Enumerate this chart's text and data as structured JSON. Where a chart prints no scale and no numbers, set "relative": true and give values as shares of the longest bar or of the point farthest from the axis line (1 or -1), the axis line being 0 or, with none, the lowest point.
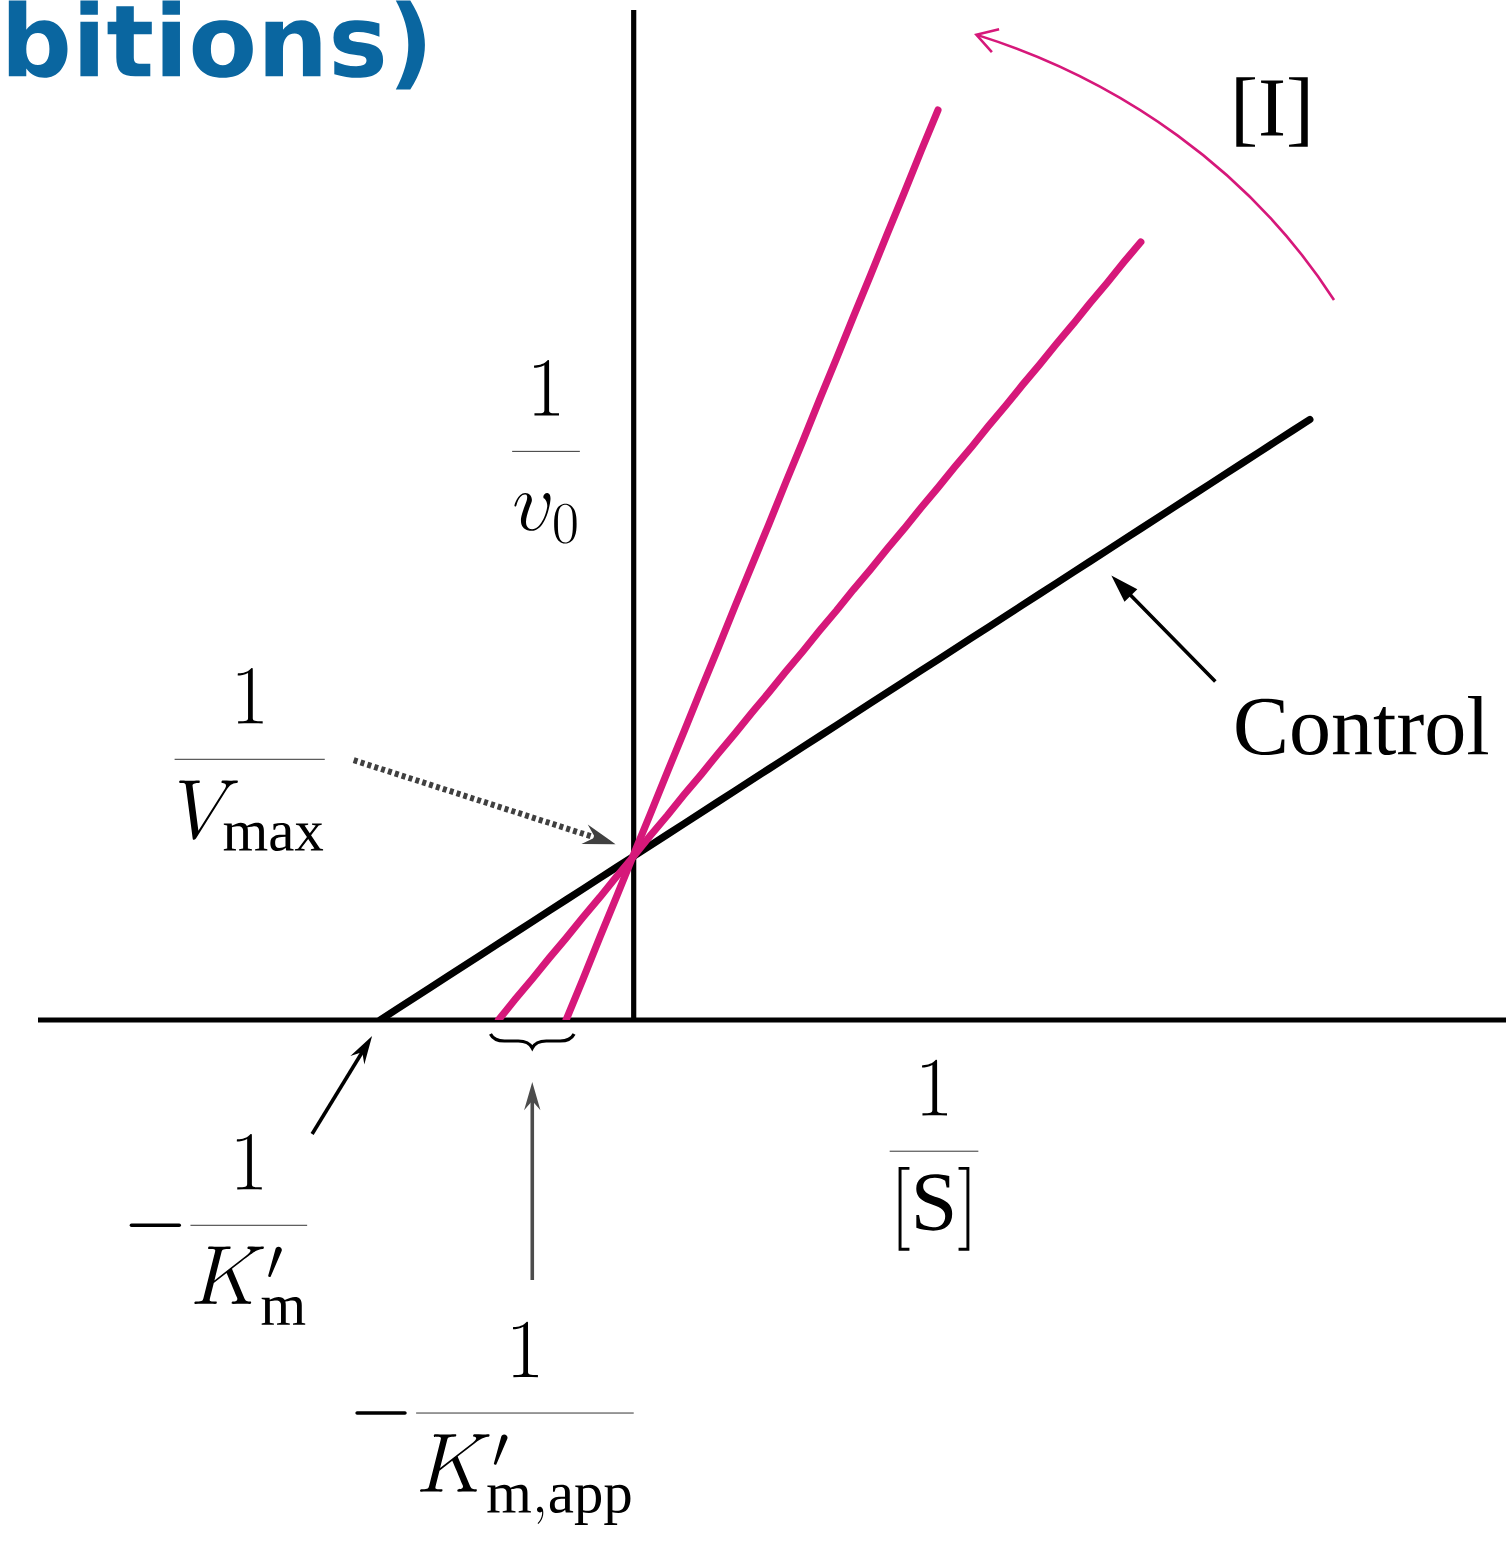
{
  "chart_data": {
    "type": "line",
    "title": "bitions)",
    "xlabel": "\\frac{1}{[\\mathrm{S}]}",
    "ylabel": "\\frac{1}{v_0}",
    "relative": true,
    "categories": [
      null,
      null,
      null,
      null,
      null,
      null,
      null,
      null,
      null,
      null,
      null,
      null,
      null,
      null,
      null,
      null,
      null,
      null,
      null,
      null,
      null,
      null,
      null,
      null,
      null,
      null,
      null,
      null,
      null,
      null,
      null,
      null,
      null,
      null,
      null,
      null,
      null,
      null,
      null,
      null,
      null,
      null,
      null,
      null,
      null,
      null,
      null,
      null,
      null,
      null,
      null,
      null,
      null,
      null,
      null,
      null
    ],
    "series": [
      {
        "name": "Control",
        "color": "#000000",
        "values": [
          0,
          0.012,
          0.024,
          0.036,
          0.048,
          0.06,
          0.072,
          0.084,
          0.096,
          0.108,
          0.12,
          0.132,
          0.144,
          0.156,
          0.168,
          0.18,
          0.192,
          0.204,
          0.216,
          0.228,
          0.24,
          0.252,
          0.264,
          0.276,
          0.288,
          0.3,
          0.312,
          0.324,
          0.336,
          0.348,
          0.36,
          0.372,
          0.384,
          0.396,
          0.408,
          0.42,
          0.432,
          0.444,
          0.456,
          0.468,
          0.48,
          0.492,
          0.504,
          0.516,
          0.528,
          0.54,
          0.552,
          0.564,
          0.576,
          0.588,
          0.6,
          0.612,
          0.624,
          0.636,
          0.648,
          0.66
        ]
      },
      {
        "color": "#d6187a",
        "values": [
          null,
          null,
          null,
          null,
          null,
          null,
          null,
          0,
          0.023,
          0.045,
          0.068,
          0.09,
          0.113,
          0.135,
          0.158,
          0.18,
          0.203,
          0.225,
          0.248,
          0.27,
          0.293,
          0.315,
          0.338,
          0.36,
          0.383,
          0.405,
          0.428,
          0.45,
          0.473,
          0.495,
          0.518,
          0.54,
          0.563,
          0.585,
          0.608,
          0.63,
          0.653,
          0.675,
          0.698,
          0.72,
          0.743,
          0.765,
          0.788,
          0.81,
          0.833,
          0.855,
          null,
          null,
          null,
          null,
          null,
          null,
          null,
          null,
          null,
          null
        ]
      },
      {
        "color": "#d6187a",
        "values": [
          null,
          null,
          null,
          null,
          null,
          null,
          null,
          null,
          null,
          null,
          null,
          0,
          0.045,
          0.091,
          0.136,
          0.182,
          0.227,
          0.273,
          0.318,
          0.364,
          0.409,
          0.455,
          0.5,
          0.545,
          0.591,
          0.636,
          0.682,
          0.727,
          0.773,
          0.818,
          0.864,
          0.909,
          0.955,
          1,
          null,
          null,
          null,
          null,
          null,
          null,
          null,
          null,
          null,
          null,
          null,
          null,
          null,
          null,
          null,
          null,
          null,
          null,
          null,
          null,
          null,
          null
        ]
      }
    ],
    "annotations": [
      "\\frac{1}{V_{\\mathrm{max}}}",
      "-\\frac{1}{K'_{\\mathrm{m}}}",
      "-\\frac{1}{K'_{\\mathrm{m,app}}}",
      "[I]"
    ]
  }
}
